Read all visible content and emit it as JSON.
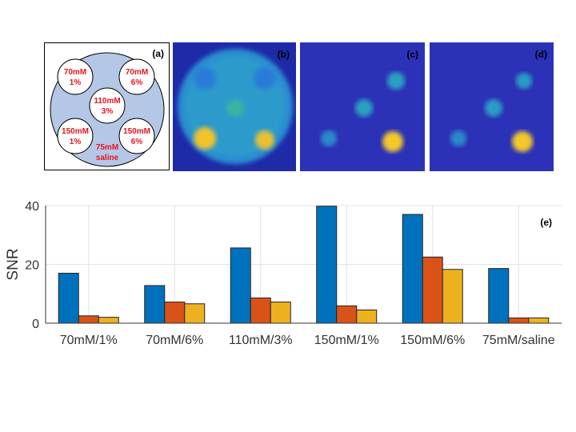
{
  "panel_a": {
    "label": "(a)",
    "vials": [
      [
        "70mM",
        "1%"
      ],
      [
        "70mM",
        "6%"
      ],
      [
        "110mM",
        "3%"
      ],
      [
        "150mM",
        "1%"
      ],
      [
        "150mM",
        "6%"
      ]
    ],
    "background": [
      "75mM",
      "saline"
    ],
    "text_color": "#e8141b",
    "fill_color": "#b4c7e7"
  },
  "panels": [
    {
      "label": "(b)"
    },
    {
      "label": "(c)"
    },
    {
      "label": "(d)"
    }
  ],
  "chart_data": {
    "type": "bar",
    "panel_label": "(e)",
    "ylabel": "SNR",
    "ylim": [
      0,
      40
    ],
    "yticks": [
      0,
      20,
      40
    ],
    "grid": true,
    "categories": [
      "70mM/1%",
      "70mM/6%",
      "110mM/3%",
      "150mM/1%",
      "150mM/6%",
      "75mM/saline"
    ],
    "series": [
      {
        "values": [
          17,
          12.8,
          25.6,
          39.8,
          37,
          18.6
        ],
        "color": "#0072bd"
      },
      {
        "values": [
          2.5,
          7.2,
          8.6,
          5.9,
          22.5,
          1.8
        ],
        "color": "#d95319"
      },
      {
        "values": [
          2,
          6.6,
          7.2,
          4.5,
          18.3,
          1.8
        ],
        "color": "#edb120"
      }
    ]
  }
}
